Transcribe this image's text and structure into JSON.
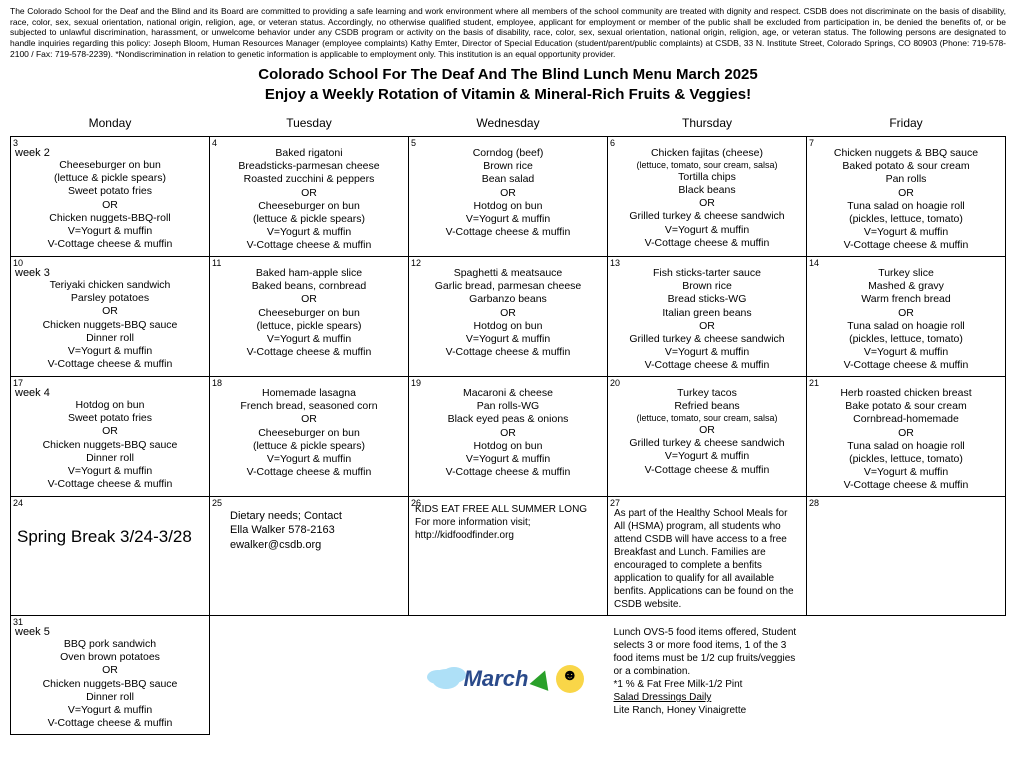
{
  "disclaimer": "The Colorado School for the Deaf and the Blind and its Board are committed to providing a safe learning and work environment where all members of the school community are treated with dignity and respect. CSDB does not discriminate on the basis of disability, race, color, sex, sexual orientation, national origin, religion, age, or veteran status. Accordingly, no otherwise qualified student, employee, applicant for employment or member of the public shall be excluded from participation in, be denied the benefits of, or be subjected to unlawful discrimination, harassment, or unwelcome behavior under any CSDB program or activity on the basis of disability, race, color, sex, sexual orientation, national origin, religion, age, or veteran status.  The following persons are designated to handle inquiries regarding this policy:  Joseph Bloom, Human Resources Manager (employee complaints) Kathy Emter, Director of Special Education (student/parent/public complaints) at CSDB, 33 N. Institute Street, Colorado Springs, CO 80903 (Phone:  719-578-2100 / Fax: 719-578-2239). *Nondiscrimination in relation to genetic information is applicable to employment only. This institution is an equal opportunity provider.",
  "title1": "Colorado School For The Deaf And The Blind Lunch Menu March 2025",
  "title2": "Enjoy a Weekly Rotation of Vitamin & Mineral-Rich Fruits & Veggies!",
  "days": [
    "Monday",
    "Tuesday",
    "Wednesday",
    "Thursday",
    "Friday"
  ],
  "rows": [
    {
      "cells": [
        {
          "num": "3",
          "week": "week 2",
          "menu": "Cheeseburger on bun\n(lettuce & pickle spears)\nSweet potato fries\nOR\nChicken nuggets-BBQ-roll\nV=Yogurt & muffin\nV-Cottage cheese & muffin"
        },
        {
          "num": "4",
          "menu": "Baked rigatoni\nBreadsticks-parmesan cheese\nRoasted zucchini & peppers\nOR\nCheeseburger on bun\n(lettuce & pickle spears)\nV=Yogurt & muffin\nV-Cottage cheese & muffin"
        },
        {
          "num": "5",
          "menu": "Corndog (beef)\nBrown rice\nBean salad\nOR\nHotdog on bun\nV=Yogurt & muffin\nV-Cottage cheese & muffin"
        },
        {
          "num": "6",
          "menu": "Chicken fajitas (cheese)\n(lettuce, tomato, sour cream, salsa)\nTortilla chips\nBlack beans\nOR\nGrilled turkey & cheese sandwich\nV=Yogurt & muffin\nV-Cottage cheese & muffin",
          "small_line": 1
        },
        {
          "num": "7",
          "menu": "Chicken nuggets & BBQ sauce\nBaked potato & sour cream\nPan rolls\nOR\nTuna salad on hoagie roll\n(pickles, lettuce, tomato)\nV=Yogurt & muffin\nV-Cottage cheese & muffin"
        }
      ]
    },
    {
      "cells": [
        {
          "num": "10",
          "week": "week 3",
          "menu": "Teriyaki chicken sandwich\nParsley potatoes\nOR\nChicken nuggets-BBQ sauce\nDinner roll\nV=Yogurt & muffin\nV-Cottage cheese & muffin"
        },
        {
          "num": "11",
          "menu": "Baked ham-apple slice\nBaked beans, cornbread\nOR\nCheeseburger on bun\n(lettuce, pickle spears)\nV=Yogurt & muffin\nV-Cottage cheese & muffin"
        },
        {
          "num": "12",
          "menu": "Spaghetti & meatsauce\nGarlic bread, parmesan cheese\nGarbanzo beans\nOR\nHotdog on bun\nV=Yogurt & muffin\nV-Cottage cheese & muffin"
        },
        {
          "num": "13",
          "menu": "Fish sticks-tarter sauce\nBrown rice\nBread sticks-WG\nItalian green beans\nOR\nGrilled turkey & cheese sandwich\nV=Yogurt & muffin\nV-Cottage cheese & muffin"
        },
        {
          "num": "14",
          "menu": "Turkey slice\nMashed & gravy\nWarm french bread\nOR\nTuna salad on hoagie roll\n(pickles, lettuce, tomato)\nV=Yogurt & muffin\nV-Cottage cheese & muffin"
        }
      ]
    },
    {
      "cells": [
        {
          "num": "17",
          "week": "week 4",
          "menu": "Hotdog on bun\nSweet potato fries\nOR\nChicken nuggets-BBQ sauce\nDinner roll\nV=Yogurt & muffin\nV-Cottage cheese & muffin"
        },
        {
          "num": "18",
          "menu": "Homemade lasagna\nFrench bread, seasoned corn\nOR\nCheeseburger on bun\n(lettuce & pickle spears)\nV=Yogurt & muffin\nV-Cottage cheese & muffin"
        },
        {
          "num": "19",
          "menu": "Macaroni & cheese\nPan rolls-WG\nBlack eyed peas & onions\nOR\nHotdog on bun\nV=Yogurt & muffin\nV-Cottage cheese & muffin"
        },
        {
          "num": "20",
          "menu": "Turkey tacos\nRefried beans\n(lettuce, tomato, sour cream, salsa)\nOR\nGrilled turkey & cheese sandwich\nV=Yogurt & muffin\nV-Cottage cheese & muffin",
          "small_line": 2
        },
        {
          "num": "21",
          "menu": "Herb roasted chicken breast\nBake potato & sour cream\nCornbread-homemade\nOR\nTuna salad on hoagie roll\n(pickles, lettuce, tomato)\nV=Yogurt & muffin\nV-Cottage cheese & muffin"
        }
      ]
    },
    {
      "spring": true,
      "cells": [
        {
          "num": "24",
          "spring_text": "Spring Break 3/24-3/28"
        },
        {
          "num": "25",
          "info": "Dietary needs; Contact\nElla Walker 578-2163\newalker@csdb.org"
        },
        {
          "num": "26",
          "info2": "KIDS EAT FREE ALL SUMMER LONG\nFor more information visit;\nhttp://kidfoodfinder.org"
        },
        {
          "num": "27",
          "hsma": "As part of the Healthy School Meals for All (HSMA) program, all students who attend CSDB will have access to a free Breakfast and Lunch. Families are encouraged to complete a benfits application to qualify for all available benfits. Applications can be found on the CSDB website."
        },
        {
          "num": "28",
          "blank": true
        }
      ]
    },
    {
      "cells": [
        {
          "num": "31",
          "week": "week 5",
          "menu": "BBQ pork sandwich\nOven brown potatoes\nOR\nChicken nuggets-BBQ sauce\nDinner roll\nV=Yogurt & muffin\nV-Cottage cheese & muffin"
        },
        {
          "noborder": true
        },
        {
          "march_art": true,
          "noborder": true
        },
        {
          "ovs": true,
          "noborder": true,
          "ovs_text": "Lunch OVS-5 food items offered, Student selects 3 or more food items, 1 of the 3 food items must be 1/2 cup fruits/veggies or a combination.\n*1 % & Fat Free Milk-1/2 Pint",
          "ovs_underline": "Salad Dressings Daily",
          "ovs_tail": "Lite Ranch, Honey Vinaigrette"
        },
        {
          "noborder": true
        }
      ]
    }
  ],
  "march_label": "March"
}
